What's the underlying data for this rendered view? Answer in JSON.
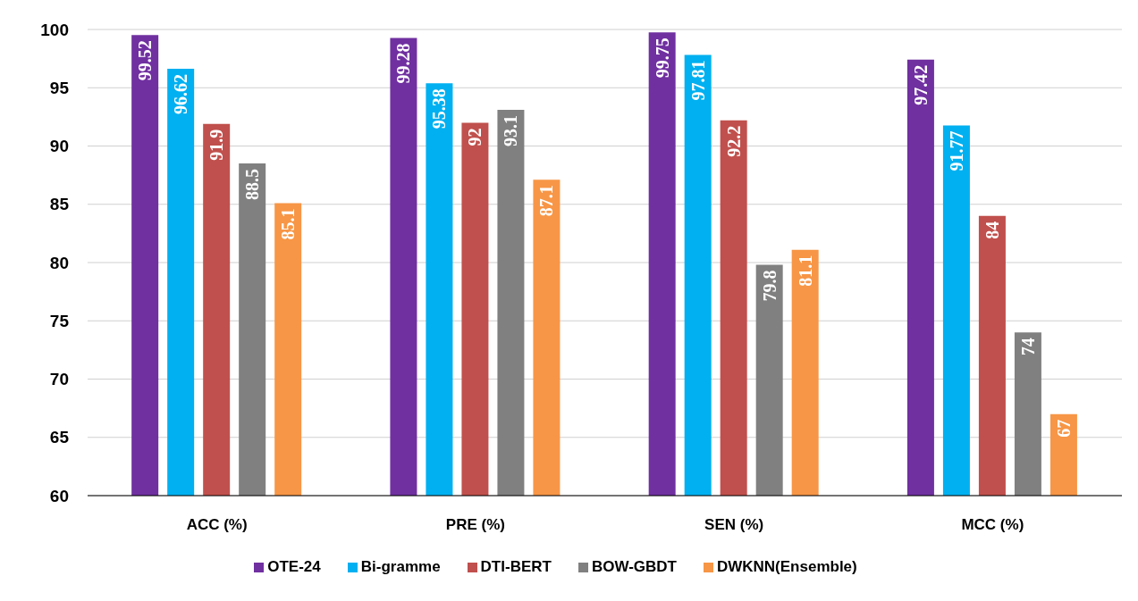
{
  "chart_data": {
    "type": "bar",
    "categories": [
      "ACC (%)",
      "PRE (%)",
      "SEN (%)",
      "MCC (%)"
    ],
    "series": [
      {
        "name": "OTE-24",
        "color": "#7030a0",
        "values": [
          99.52,
          99.28,
          99.75,
          97.42
        ]
      },
      {
        "name": "Bi-gramme",
        "color": "#00b0f0",
        "values": [
          96.62,
          95.38,
          97.81,
          91.77
        ]
      },
      {
        "name": "DTI-BERT",
        "color": "#c0504d",
        "values": [
          91.9,
          92,
          92.2,
          84
        ]
      },
      {
        "name": "BOW-GBDT",
        "color": "#808080",
        "values": [
          88.5,
          93.1,
          79.8,
          74
        ]
      },
      {
        "name": "DWKNN(Ensemble)",
        "color": "#f79646",
        "values": [
          85.1,
          87.1,
          81.1,
          67
        ]
      }
    ],
    "ylim": [
      60,
      100
    ],
    "yticks": [
      60,
      65,
      70,
      75,
      80,
      85,
      90,
      95,
      100
    ],
    "grid": "y",
    "legend": "bottom",
    "data_labels": true
  }
}
